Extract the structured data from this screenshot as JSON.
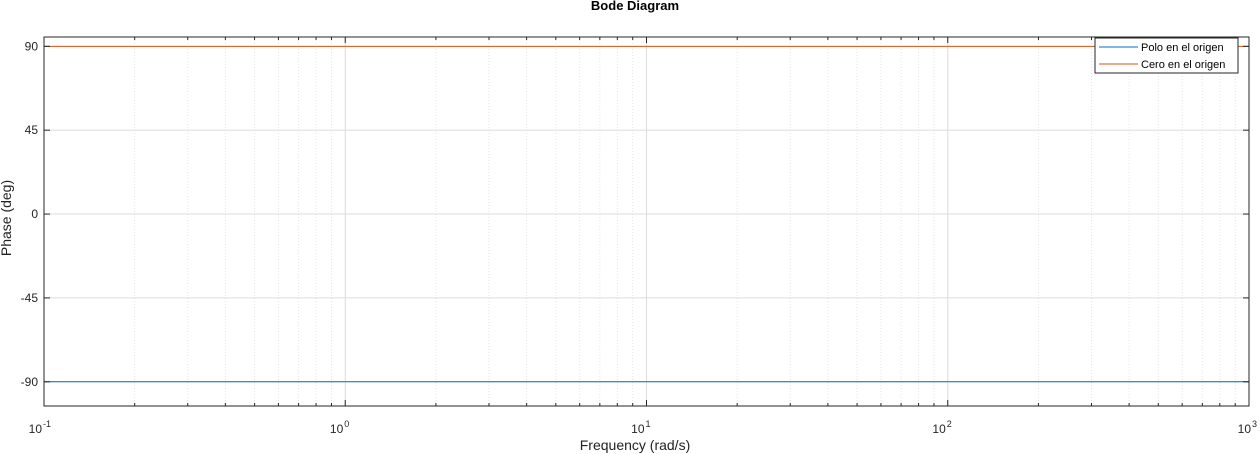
{
  "chart_data": {
    "type": "line",
    "title": "Bode Diagram",
    "xlabel": "Frequency  (rad/s)",
    "ylabel": "Phase (deg)",
    "xscale": "log",
    "xlim": [
      0.1,
      1000
    ],
    "ylim": [
      -103,
      95
    ],
    "yticks": [
      90,
      45,
      0,
      -45,
      -90
    ],
    "xticks": [
      {
        "value": 0.1,
        "base": "10",
        "exp": "-1"
      },
      {
        "value": 1,
        "base": "10",
        "exp": "0"
      },
      {
        "value": 10,
        "base": "10",
        "exp": "1"
      },
      {
        "value": 100,
        "base": "10",
        "exp": "2"
      },
      {
        "value": 1000,
        "base": "10",
        "exp": "3"
      }
    ],
    "grid": true,
    "legend_position": "top-right",
    "series": [
      {
        "name": "Polo en el origen",
        "color": "#0072BD",
        "x": [
          0.1,
          1000
        ],
        "y": [
          -90,
          -90
        ]
      },
      {
        "name": "Cero en el origen",
        "color": "#D95319",
        "x": [
          0.1,
          1000
        ],
        "y": [
          90,
          90
        ]
      }
    ]
  }
}
